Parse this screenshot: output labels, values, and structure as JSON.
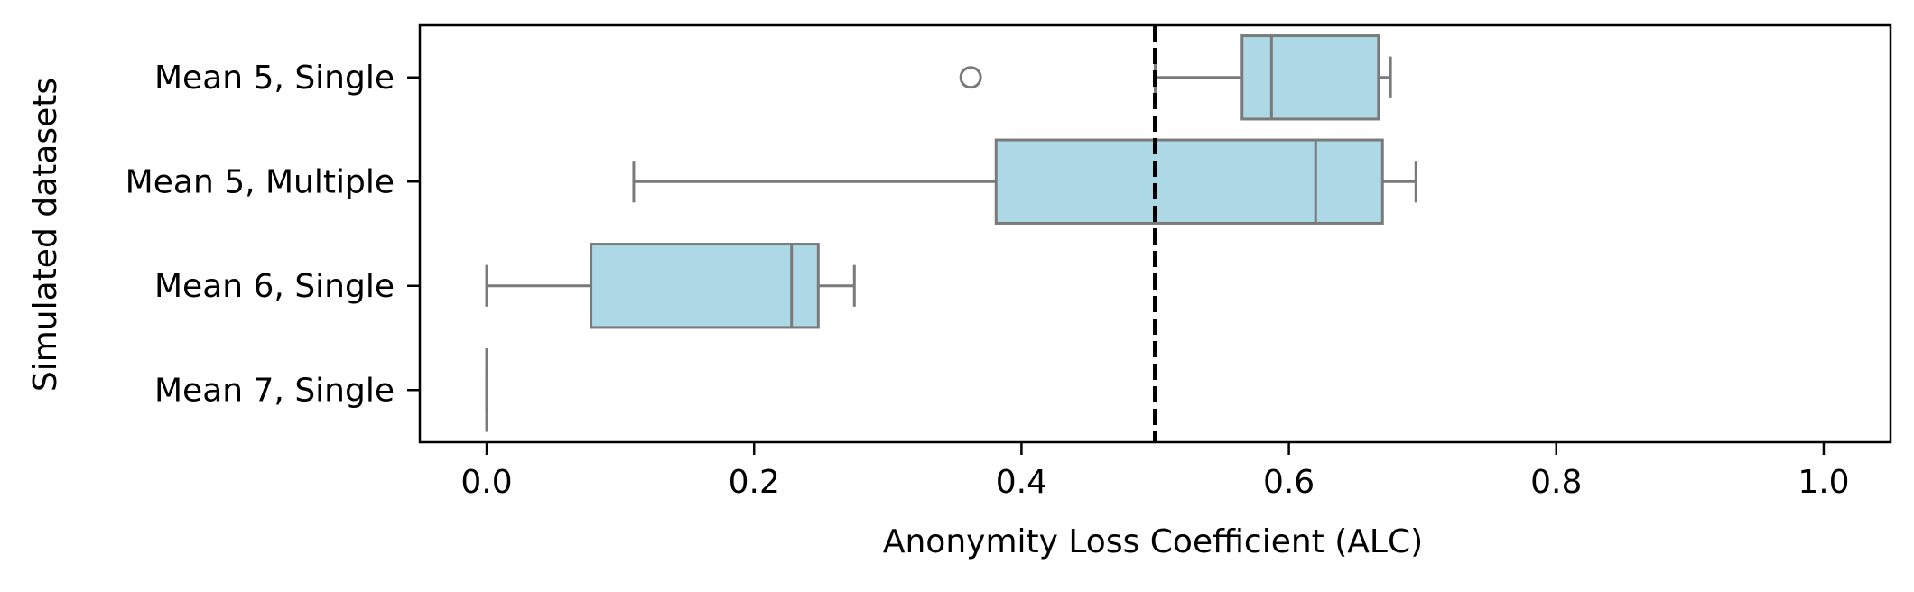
{
  "chart_data": {
    "type": "boxplot",
    "orientation": "horizontal",
    "xlabel": "Anonymity Loss Coefficient (ALC)",
    "ylabel": "Simulated datasets",
    "xlim": [
      -0.05,
      1.05
    ],
    "xticks": [
      "0.0",
      "0.2",
      "0.4",
      "0.6",
      "0.8",
      "1.0"
    ],
    "xtick_values": [
      0.0,
      0.2,
      0.4,
      0.6,
      0.8,
      1.0
    ],
    "categories": [
      "Mean 5, Single",
      "Mean 5, Multiple",
      "Mean 6, Single",
      "Mean 7, Single"
    ],
    "boxes": [
      {
        "label": "Mean 5, Single",
        "whisker_low": 0.5,
        "q1": 0.565,
        "median": 0.587,
        "q3": 0.667,
        "whisker_high": 0.676,
        "outliers": [
          0.362
        ]
      },
      {
        "label": "Mean 5, Multiple",
        "whisker_low": 0.11,
        "q1": 0.381,
        "median": 0.62,
        "q3": 0.67,
        "whisker_high": 0.695,
        "outliers": []
      },
      {
        "label": "Mean 6, Single",
        "whisker_low": 0.0,
        "q1": 0.078,
        "median": 0.228,
        "q3": 0.248,
        "whisker_high": 0.275,
        "outliers": []
      },
      {
        "label": "Mean 7, Single",
        "whisker_low": 0.0,
        "q1": 0.0,
        "median": 0.0,
        "q3": 0.0,
        "whisker_high": 0.0,
        "outliers": []
      }
    ],
    "reference_line": {
      "x": 0.5,
      "style": "dashed",
      "color": "#000000"
    },
    "colors": {
      "box_fill": "#add8e6",
      "box_edge": "#7a7a7a",
      "axis": "#000000"
    },
    "grid": false,
    "legend": "none"
  }
}
